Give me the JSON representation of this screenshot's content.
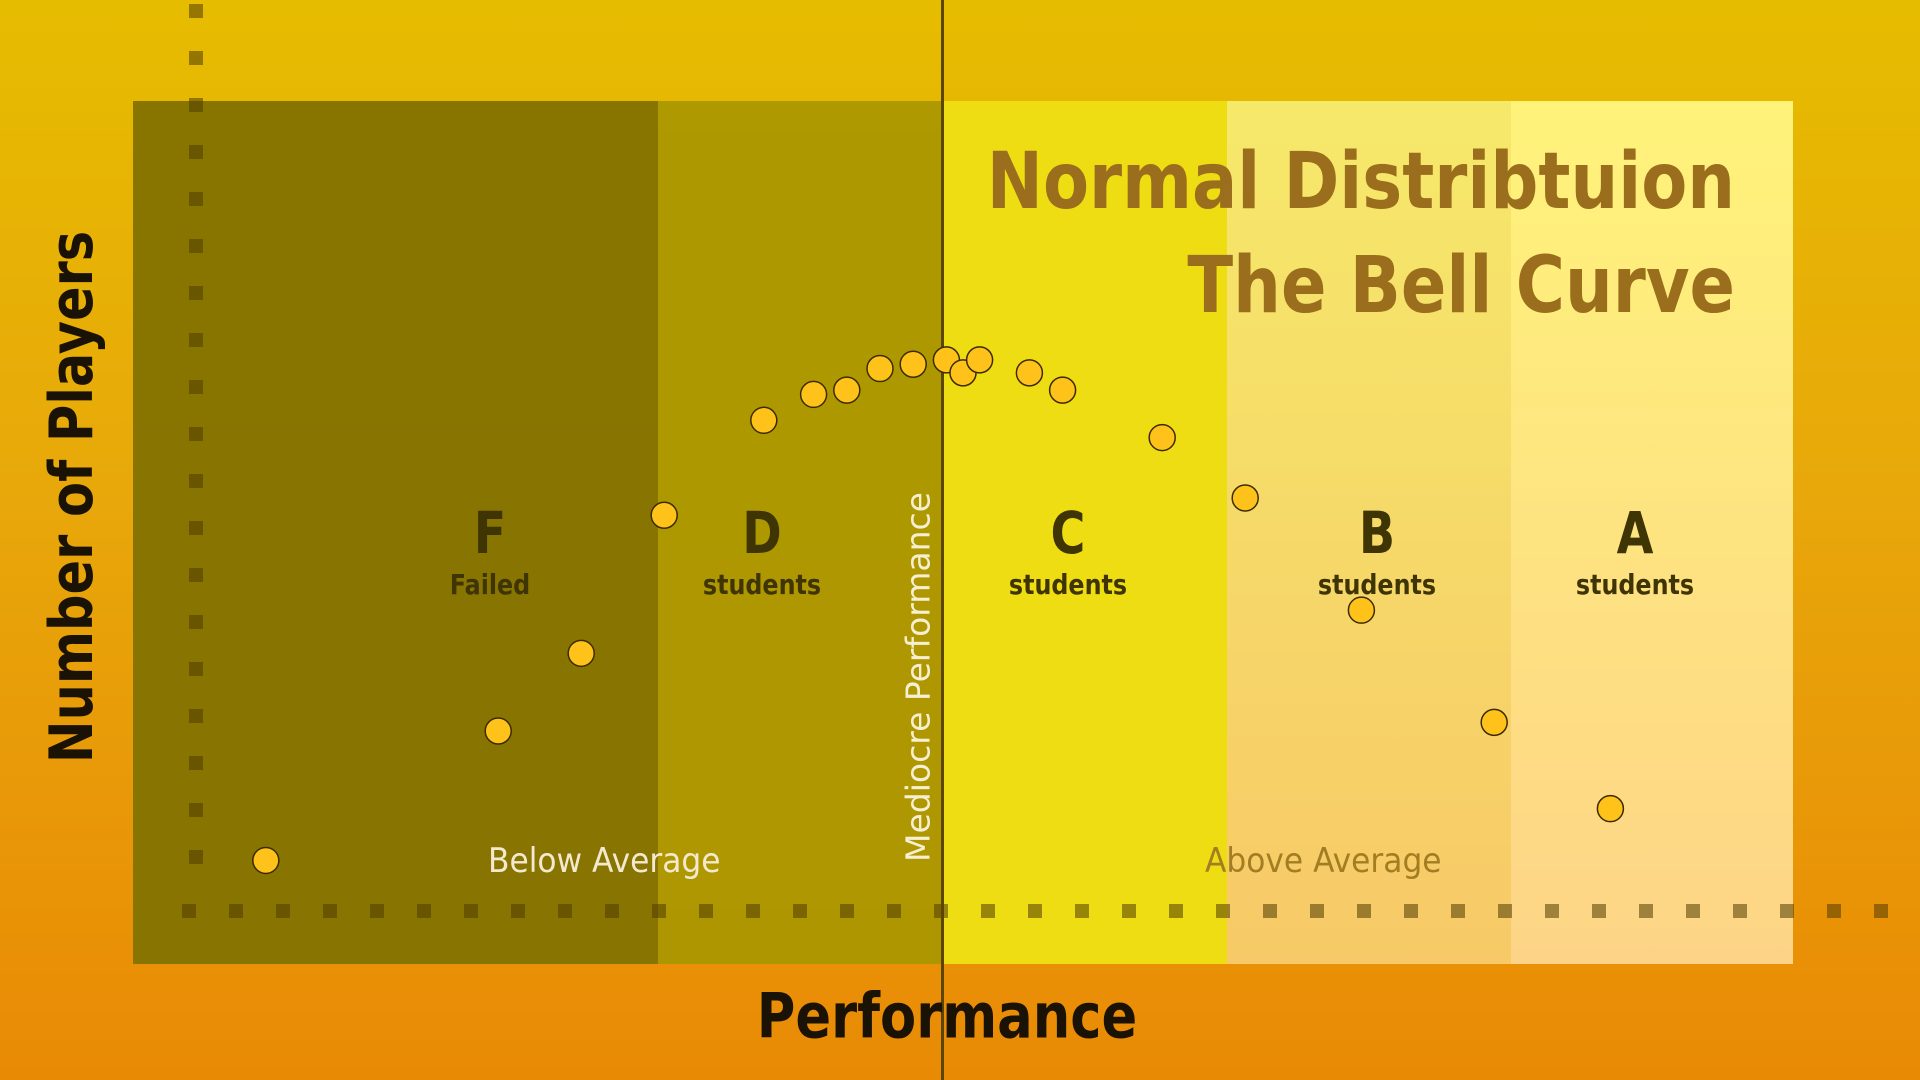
{
  "title_lines": [
    "Normal Distribtuion",
    "The Bell Curve"
  ],
  "axes": {
    "x_title": "Performance",
    "y_title": "Number of Players"
  },
  "mean_label": "Mediocre Performance",
  "regions": {
    "below": "Below Average",
    "above": "Above Average"
  },
  "grades": [
    {
      "letter": "F",
      "sub": "Failed"
    },
    {
      "letter": "D",
      "sub": "students"
    },
    {
      "letter": "C",
      "sub": "students"
    },
    {
      "letter": "B",
      "sub": "students"
    },
    {
      "letter": "A",
      "sub": "students"
    }
  ],
  "colors": {
    "dot_fill": "#ffc21a",
    "dot_stroke": "#3a2c00",
    "title": "#9a6e1c",
    "axis_title": "#1a1204",
    "grade_text": "#3f3403"
  },
  "chart_data": {
    "type": "scatter",
    "title": "Normal Distribtuion The Bell Curve",
    "xlabel": "Performance",
    "ylabel": "Number of Players",
    "grid": false,
    "mean_label": "Mediocre Performance",
    "regions": [
      "Below Average",
      "Above Average"
    ],
    "bands": [
      "F Failed",
      "D students",
      "C students",
      "B students",
      "A students"
    ],
    "xlim": [
      0,
      100
    ],
    "ylim": [
      0,
      100
    ],
    "points": [
      {
        "x": 8,
        "y": 12
      },
      {
        "x": 22,
        "y": 27
      },
      {
        "x": 27,
        "y": 36
      },
      {
        "x": 32,
        "y": 52
      },
      {
        "x": 38,
        "y": 63
      },
      {
        "x": 41,
        "y": 66
      },
      {
        "x": 43,
        "y": 66.5
      },
      {
        "x": 45,
        "y": 69
      },
      {
        "x": 47,
        "y": 69.5
      },
      {
        "x": 49,
        "y": 70
      },
      {
        "x": 50,
        "y": 68.5
      },
      {
        "x": 51,
        "y": 70
      },
      {
        "x": 54,
        "y": 68.5
      },
      {
        "x": 56,
        "y": 66.5
      },
      {
        "x": 62,
        "y": 61
      },
      {
        "x": 67,
        "y": 54
      },
      {
        "x": 74,
        "y": 41
      },
      {
        "x": 82,
        "y": 28
      },
      {
        "x": 89,
        "y": 18
      }
    ]
  }
}
